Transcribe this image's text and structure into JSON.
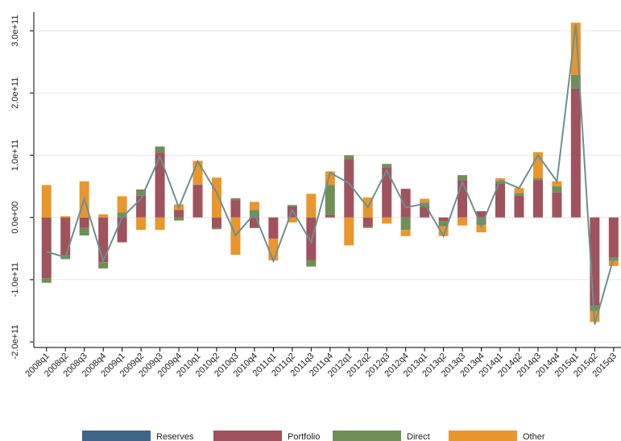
{
  "chart_data": {
    "type": "bar",
    "stacked": true,
    "grid": true,
    "categories": [
      "2008q1",
      "2008q2",
      "2008q3",
      "2008q4",
      "2009q1",
      "2009q2",
      "2009q3",
      "2009q4",
      "2010q1",
      "2010q2",
      "2010q3",
      "2010q4",
      "2011q1",
      "2011q2",
      "2011q3",
      "2011q4",
      "2012q1",
      "2012q2",
      "2012q3",
      "2012q4",
      "2013q1",
      "2013q2",
      "2013q3",
      "2013q4",
      "2014q1",
      "2014q2",
      "2014q3",
      "2014q4",
      "2015q1",
      "2015q2",
      "2015q3"
    ],
    "series": [
      {
        "name": "Reserves",
        "color": "#3e6488",
        "values": [
          0,
          0,
          0,
          0,
          0,
          0,
          0,
          0,
          0,
          0,
          0,
          0,
          0,
          0,
          0,
          0,
          0,
          0,
          0,
          0,
          0,
          0,
          0,
          0,
          0,
          0,
          0,
          0,
          0,
          0,
          0
        ]
      },
      {
        "name": "Portfolio",
        "color": "#a0525d",
        "values": [
          -98000000000.0,
          -60000000000.0,
          -17000000000.0,
          -72000000000.0,
          -40000000000.0,
          35000000000.0,
          104000000000.0,
          12000000000.0,
          52000000000.0,
          -17000000000.0,
          28000000000.0,
          -17000000000.0,
          -34000000000.0,
          18000000000.0,
          -69000000000.0,
          4000000000.0,
          94000000000.0,
          -15000000000.0,
          80000000000.0,
          46000000000.0,
          17000000000.0,
          -6000000000.0,
          60000000000.0,
          10000000000.0,
          55000000000.0,
          35000000000.0,
          60000000000.0,
          40000000000.0,
          207000000000.0,
          -142000000000.0,
          -64000000000.0
        ]
      },
      {
        "name": "Direct",
        "color": "#6f8f56",
        "values": [
          -7000000000.0,
          -7000000000.0,
          -12000000000.0,
          -10000000000.0,
          8000000000.0,
          10000000000.0,
          10000000000.0,
          -5000000000.0,
          1000000000.0,
          -2000000000.0,
          3000000000.0,
          12000000000.0,
          0,
          2000000000.0,
          -10000000000.0,
          48000000000.0,
          6000000000.0,
          -2000000000.0,
          6000000000.0,
          -20000000000.0,
          7000000000.0,
          -8000000000.0,
          8000000000.0,
          -12000000000.0,
          3000000000.0,
          4000000000.0,
          3000000000.0,
          10000000000.0,
          22000000000.0,
          -8000000000.0,
          -6000000000.0
        ]
      },
      {
        "name": "Other",
        "color": "#e9962c",
        "values": [
          52000000000.0,
          2000000000.0,
          58000000000.0,
          5000000000.0,
          26000000000.0,
          -20000000000.0,
          -20000000000.0,
          9000000000.0,
          38000000000.0,
          64000000000.0,
          -60000000000.0,
          13000000000.0,
          -35000000000.0,
          -8000000000.0,
          38000000000.0,
          22000000000.0,
          -45000000000.0,
          32000000000.0,
          -10000000000.0,
          -10000000000.0,
          6000000000.0,
          -16000000000.0,
          -13000000000.0,
          -12000000000.0,
          5000000000.0,
          8000000000.0,
          42000000000.0,
          8000000000.0,
          84000000000.0,
          -18000000000.0,
          -8000000000.0
        ]
      }
    ],
    "line": {
      "color": "#6f8f8f",
      "values": [
        -55000000000.0,
        -64000000000.0,
        30000000000.0,
        -70000000000.0,
        0,
        30000000000.0,
        98000000000.0,
        16000000000.0,
        90000000000.0,
        40000000000.0,
        -29000000000.0,
        6000000000.0,
        -70000000000.0,
        12000000000.0,
        -40000000000.0,
        72000000000.0,
        55000000000.0,
        16000000000.0,
        76000000000.0,
        16000000000.0,
        22000000000.0,
        -30000000000.0,
        57000000000.0,
        -14000000000.0,
        60000000000.0,
        47000000000.0,
        100000000000.0,
        58000000000.0,
        310000000000.0,
        -172000000000.0,
        -65000000000.0
      ]
    },
    "ylim": [
      -209000000000.0,
      330000000000.0
    ],
    "yticks": [
      {
        "value": -200000000000.0,
        "label": "-2.0e+11"
      },
      {
        "value": -100000000000.0,
        "label": "-1.0e+11"
      },
      {
        "value": 0,
        "label": "0.0e+00"
      },
      {
        "value": 100000000000.0,
        "label": "1.0e+11"
      },
      {
        "value": 200000000000.0,
        "label": "2.0e+11"
      },
      {
        "value": 300000000000.0,
        "label": "3.0e+11"
      }
    ]
  }
}
